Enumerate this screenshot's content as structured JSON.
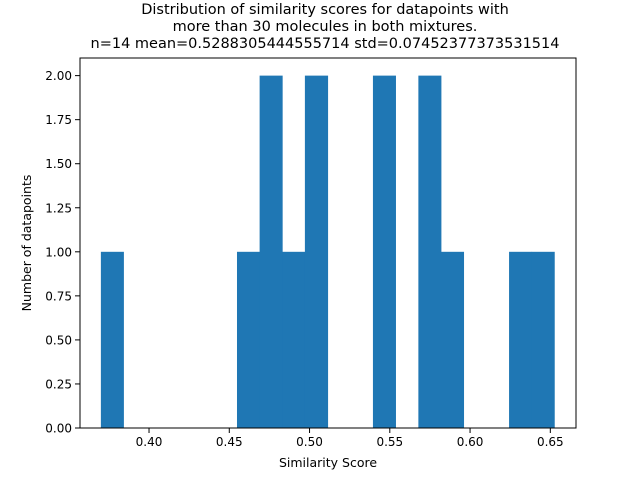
{
  "chart_data": {
    "type": "bar",
    "title_lines": [
      "Distribution of similarity scores for datapoints with",
      "more than 30 molecules in both mixtures.",
      "n=14 mean=0.5288305444555714 std=0.07452377373531514"
    ],
    "xlabel": "Similarity Score",
    "ylabel": "Number of datapoints",
    "xlim": [
      0.357,
      0.666
    ],
    "ylim": [
      0,
      2.1
    ],
    "xticks": [
      "0.40",
      "0.45",
      "0.50",
      "0.55",
      "0.60",
      "0.65"
    ],
    "xtick_values": [
      0.4,
      0.45,
      0.5,
      0.55,
      0.6,
      0.65
    ],
    "yticks": [
      "0.00",
      "0.25",
      "0.50",
      "0.75",
      "1.00",
      "1.25",
      "1.50",
      "1.75",
      "2.00"
    ],
    "ytick_values": [
      0.0,
      0.25,
      0.5,
      0.75,
      1.0,
      1.25,
      1.5,
      1.75,
      2.0
    ],
    "bar_color": "#1f77b4",
    "grid": false,
    "bins": [
      {
        "x0": 0.37,
        "x1": 0.3841,
        "count": 1
      },
      {
        "x0": 0.3841,
        "x1": 0.3983,
        "count": 0
      },
      {
        "x0": 0.3983,
        "x1": 0.4124,
        "count": 0
      },
      {
        "x0": 0.4124,
        "x1": 0.4265,
        "count": 0
      },
      {
        "x0": 0.4265,
        "x1": 0.4406,
        "count": 0
      },
      {
        "x0": 0.4406,
        "x1": 0.4548,
        "count": 0
      },
      {
        "x0": 0.4548,
        "x1": 0.4689,
        "count": 1
      },
      {
        "x0": 0.4689,
        "x1": 0.483,
        "count": 2
      },
      {
        "x0": 0.483,
        "x1": 0.4971,
        "count": 1
      },
      {
        "x0": 0.4971,
        "x1": 0.5113,
        "count": 2
      },
      {
        "x0": 0.5113,
        "x1": 0.5254,
        "count": 0
      },
      {
        "x0": 0.5254,
        "x1": 0.5395,
        "count": 0
      },
      {
        "x0": 0.5395,
        "x1": 0.5536,
        "count": 2
      },
      {
        "x0": 0.5536,
        "x1": 0.5678,
        "count": 0
      },
      {
        "x0": 0.5678,
        "x1": 0.5819,
        "count": 2
      },
      {
        "x0": 0.5819,
        "x1": 0.596,
        "count": 1
      },
      {
        "x0": 0.596,
        "x1": 0.6101,
        "count": 0
      },
      {
        "x0": 0.6101,
        "x1": 0.6243,
        "count": 0
      },
      {
        "x0": 0.6243,
        "x1": 0.6384,
        "count": 1
      },
      {
        "x0": 0.6384,
        "x1": 0.6525,
        "count": 1
      }
    ]
  }
}
